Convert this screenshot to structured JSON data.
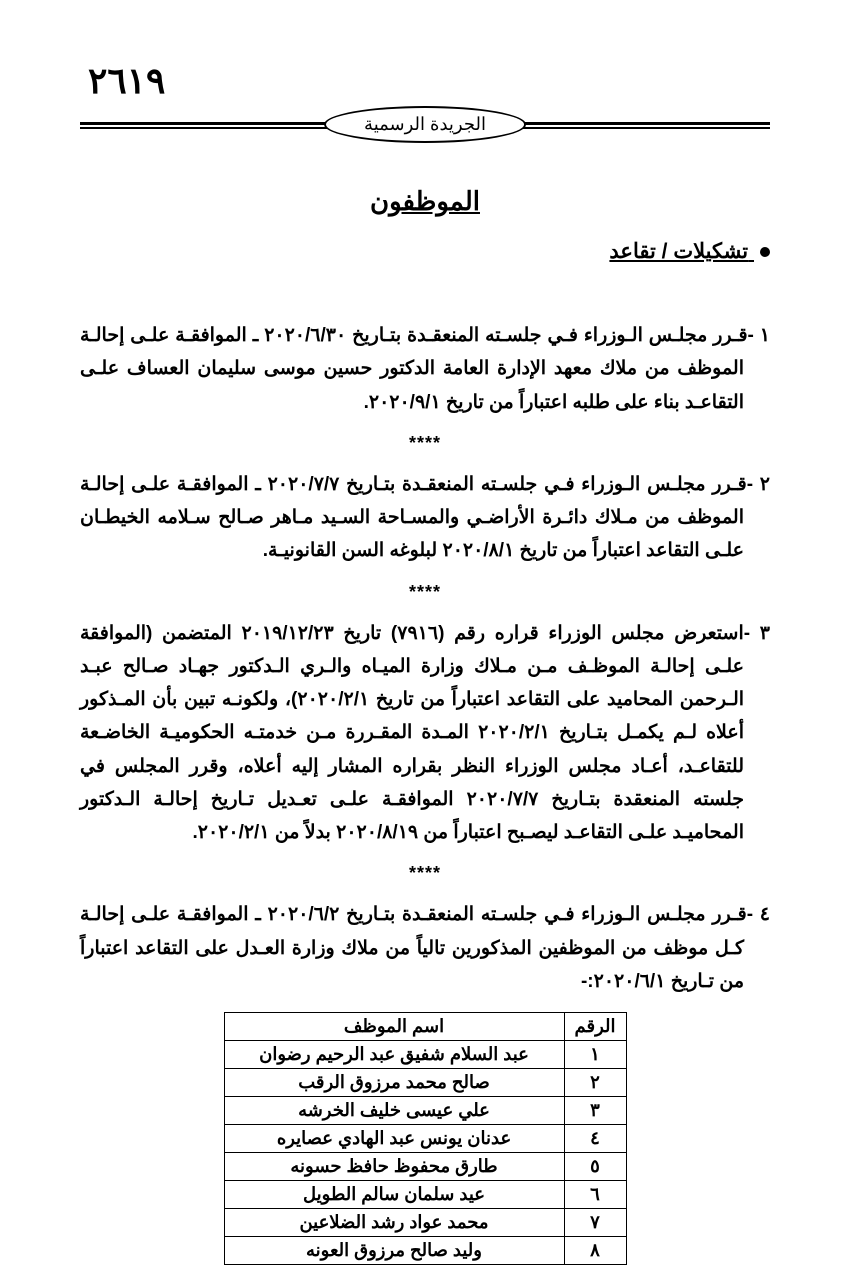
{
  "page_number": "٢٦١٩",
  "gazette_label": "الجريدة الرسمية",
  "main_title": "الموظفون",
  "sub_title": "تشكيلات / تقاعد",
  "separator": "****",
  "items": [
    {
      "num": "١ -",
      "text": "قـرر مجلـس الـوزراء فـي جلسـته المنعقـدة بتـاريخ ٢٠٢٠/٦/٣٠ ـ الموافقـة علـى إحالـة الموظف من ملاك معهد الإدارة العامة الدكتور حسين موسى سليمان العساف علـى التقاعـد بناء على طلبه اعتباراً من تاريخ ٢٠٢٠/٩/١."
    },
    {
      "num": "٢ -",
      "text": "قـرر مجلـس الـوزراء فـي جلسـته المنعقـدة بتـاريخ ٢٠٢٠/٧/٧ ـ الموافقـة علـى إحالـة الموظف من مـلاك دائـرة الأراضـي والمسـاحة السـيد مـاهر صـالح سـلامه الخيطـان علـى التقاعد اعتباراً من تاريخ ٢٠٢٠/٨/١ لبلوغه السن القانونيـة."
    },
    {
      "num": "٣ -",
      "text": "استعرض مجلس الوزراء قراره رقم (٧٩١٦) تاريخ ٢٠١٩/١٢/٢٣ المتضمن (الموافقة علـى إحالـة الموظـف مـن مـلاك وزارة الميـاه والـري الـدكتور جهـاد صـالح عبـد الـرحمن المحاميد على التقاعد اعتباراً من تاريخ ٢٠٢٠/٢/١)، ولكونـه تبين بأن المـذكور أعلاه لـم يكمـل بتـاريخ ٢٠٢٠/٢/١ المـدة المقـررة مـن خدمتـه الحكوميـة الخاضـعة للتقاعـد، أعـاد مجلس الوزراء النظر بقراره المشار إليه أعلاه، وقرر المجلس في جلسته المنعقدة بتـاريخ ٢٠٢٠/٧/٧ الموافقـة علـى تعـديل تـاريخ إحالـة الـدكتور المحاميـد علـى التقاعـد ليصـبح اعتباراً من ٢٠٢٠/٨/١٩ بدلاً من ٢٠٢٠/٢/١."
    },
    {
      "num": "٤ -",
      "text": "قـرر مجلـس الـوزراء فـي جلسـته المنعقـدة بتـاريخ ٢٠٢٠/٦/٢ ـ الموافقـة علـى إحالـة كـل موظف من الموظفين المذكورين تالياً من ملاك وزارة العـدل على التقاعد اعتباراً من تـاريخ ٢٠٢٠/٦/١:-"
    }
  ],
  "table": {
    "headers": {
      "num": "الرقم",
      "name": "اسم الموظف"
    },
    "rows": [
      {
        "num": "١",
        "name": "عبد السلام شفيق عبد الرحيم رضوان"
      },
      {
        "num": "٢",
        "name": "صالح محمد مرزوق الرقب"
      },
      {
        "num": "٣",
        "name": "علي عيسى خليف الخرشه"
      },
      {
        "num": "٤",
        "name": "عدنان يونس عبد الهادي عصايره"
      },
      {
        "num": "٥",
        "name": "طارق محفوظ حافظ حسونه"
      },
      {
        "num": "٦",
        "name": "عيد سلمان سالم الطويل"
      },
      {
        "num": "٧",
        "name": "محمد عواد رشد الضلاعين"
      },
      {
        "num": "٨",
        "name": "وليد صالح مرزوق العونه"
      }
    ]
  }
}
